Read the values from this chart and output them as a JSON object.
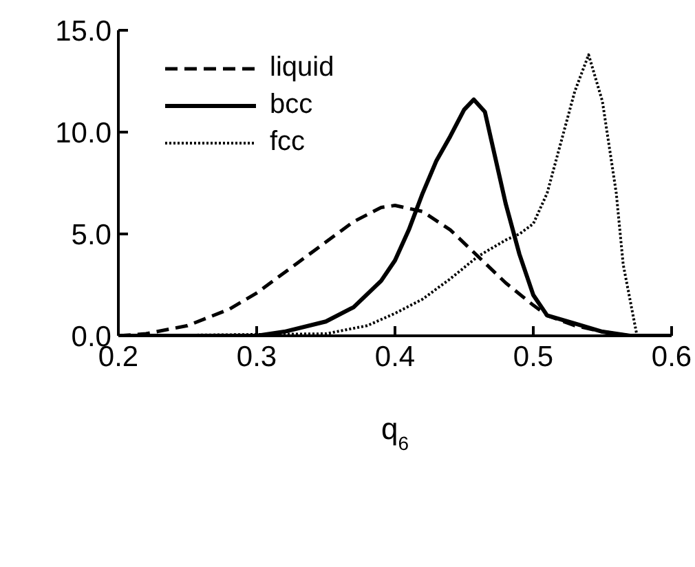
{
  "chart_data": {
    "type": "line",
    "xlabel": "q$_{6}$",
    "xlim": [
      0.2,
      0.6
    ],
    "xticks": [
      0.2,
      0.3,
      0.4,
      0.5,
      0.6
    ],
    "ylim": [
      0,
      15
    ],
    "yticks": [
      {
        "value": 0,
        "label": "0.0"
      },
      {
        "value": 5,
        "label": "5.0"
      },
      {
        "value": 10,
        "label": "10.0"
      },
      {
        "value": 15,
        "label": "15.0"
      }
    ],
    "legend": "top left",
    "marker": "none",
    "series": [
      {
        "name": "liquid",
        "color": "#000000",
        "line_style": "dashed",
        "x": [
          0.2,
          0.22,
          0.25,
          0.28,
          0.3,
          0.33,
          0.35,
          0.37,
          0.39,
          0.4,
          0.42,
          0.44,
          0.46,
          0.48,
          0.5,
          0.51,
          0.53,
          0.55,
          0.57,
          0.6
        ],
        "values": [
          0,
          0.1,
          0.5,
          1.3,
          2.1,
          3.6,
          4.6,
          5.6,
          6.3,
          6.4,
          6.1,
          5.2,
          3.9,
          2.6,
          1.5,
          1.0,
          0.5,
          0.2,
          0,
          0
        ]
      },
      {
        "name": "bcc",
        "color": "#000000",
        "line_style": "solid",
        "x": [
          0.2,
          0.3,
          0.32,
          0.35,
          0.37,
          0.39,
          0.4,
          0.41,
          0.42,
          0.43,
          0.44,
          0.45,
          0.457,
          0.465,
          0.47,
          0.48,
          0.49,
          0.5,
          0.51,
          0.53,
          0.55,
          0.57,
          0.6
        ],
        "values": [
          0,
          0,
          0.2,
          0.7,
          1.4,
          2.7,
          3.7,
          5.2,
          7.0,
          8.6,
          9.8,
          11.1,
          11.6,
          11.0,
          9.5,
          6.5,
          4.0,
          2.0,
          1.0,
          0.6,
          0.2,
          0,
          0
        ]
      },
      {
        "name": "fcc",
        "color": "#000000",
        "line_style": "dotted",
        "x": [
          0.2,
          0.35,
          0.38,
          0.4,
          0.42,
          0.44,
          0.46,
          0.47,
          0.48,
          0.49,
          0.5,
          0.51,
          0.52,
          0.53,
          0.54,
          0.55,
          0.56,
          0.565,
          0.575,
          0.6
        ],
        "values": [
          0,
          0.1,
          0.5,
          1.1,
          1.8,
          2.8,
          3.9,
          4.3,
          4.7,
          5.0,
          5.5,
          7.0,
          9.5,
          12.0,
          13.8,
          11.5,
          7.0,
          3.5,
          0,
          0
        ]
      }
    ]
  }
}
